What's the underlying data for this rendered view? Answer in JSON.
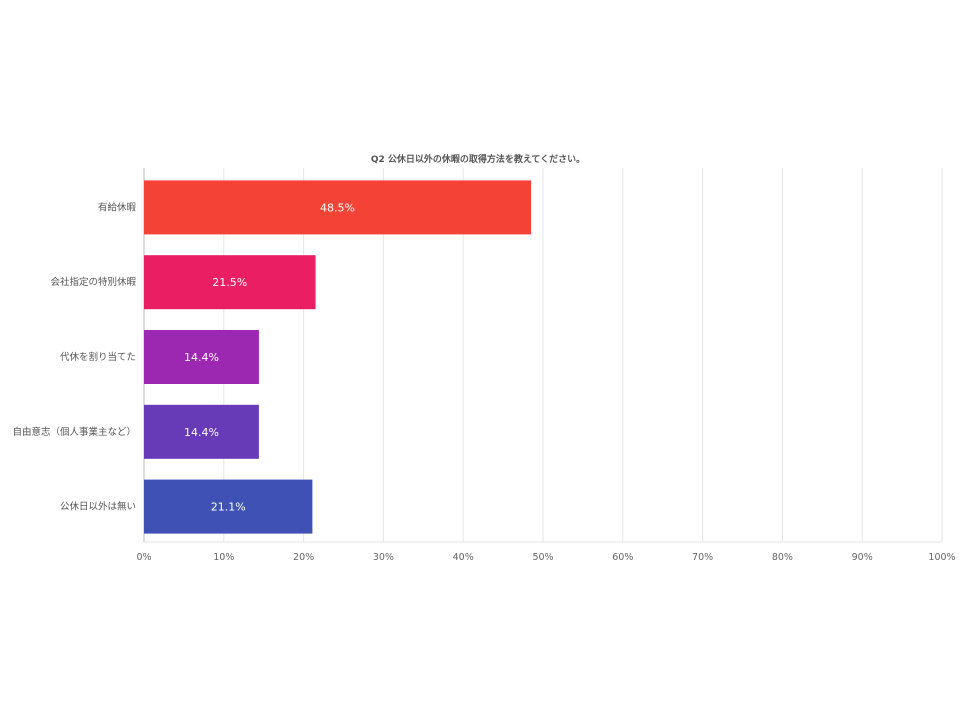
{
  "chart_data": {
    "type": "bar",
    "orientation": "horizontal",
    "title": "Q2 公休日以外の休暇の取得方法を教えてください。",
    "categories": [
      "有給休暇",
      "会社指定の特別休暇",
      "代休を割り当てた",
      "自由意志（個人事業主など）",
      "公休日以外は無い"
    ],
    "values": [
      48.5,
      21.5,
      14.4,
      14.4,
      21.1
    ],
    "data_labels": [
      "48.5%",
      "21.5%",
      "14.4%",
      "14.4%",
      "21.1%"
    ],
    "colors": [
      "#f44336",
      "#e91e63",
      "#9c27b0",
      "#673ab7",
      "#3f51b5"
    ],
    "xlim": [
      0,
      100
    ],
    "x_ticks": [
      "0%",
      "10%",
      "20%",
      "30%",
      "40%",
      "50%",
      "60%",
      "70%",
      "80%",
      "90%",
      "100%"
    ],
    "xlabel": "",
    "ylabel": "",
    "grid": true,
    "legend": "none"
  }
}
